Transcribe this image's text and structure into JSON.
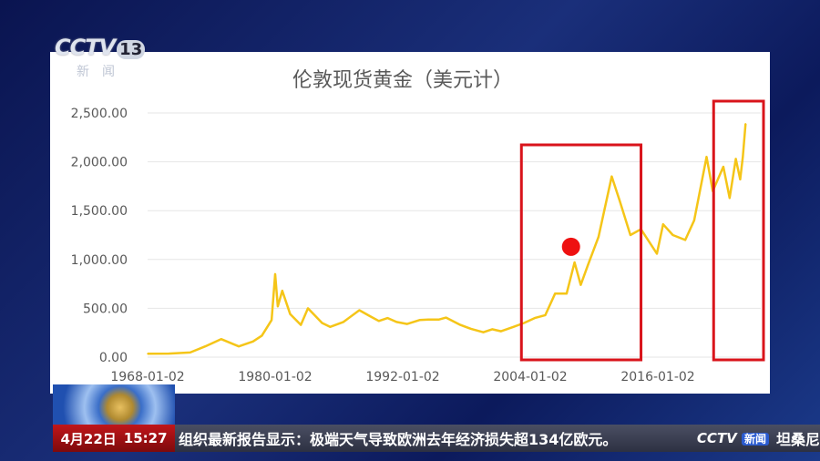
{
  "logo": {
    "brand": "CCTV",
    "channel": "13",
    "sub": "新闻"
  },
  "ticker": {
    "date": "4月22日",
    "time": "15:27",
    "headline": "组织最新报告显示：极端天气导致欧洲去年经济损失超134亿欧元。",
    "logo_brand": "CCTV",
    "logo_tag": "新闻",
    "next": "坦桑尼"
  },
  "colors": {
    "line": "#f5c518",
    "highlight": "#d9141b",
    "grid": "#e6e6e6",
    "axis_text": "#595959"
  },
  "chart_data": {
    "type": "line",
    "title": "伦敦现货黄金（美元计）",
    "xlabel": "",
    "ylabel": "",
    "xlim": [
      "1968-01-02",
      "2024-06-30"
    ],
    "ylim": [
      0,
      2500
    ],
    "yticks": [
      "0.00",
      "500.00",
      "1,000.00",
      "1,500.00",
      "2,000.00",
      "2,500.00"
    ],
    "xticks": [
      "1968-01-02",
      "1980-01-02",
      "1992-01-02",
      "2004-01-02",
      "2016-01-02"
    ],
    "grid": "horizontal",
    "series": [
      {
        "x": [
          "1968-01",
          "1970-01",
          "1972-01",
          "1973-06",
          "1974-12",
          "1976-08",
          "1977-12",
          "1978-10",
          "1979-09",
          "1980-01",
          "1980-04",
          "1980-09",
          "1981-06",
          "1982-06",
          "1983-02",
          "1984-06",
          "1985-03",
          "1986-06",
          "1987-12",
          "1988-12",
          "1989-10",
          "1990-08",
          "1991-06",
          "1992-06",
          "1993-08",
          "1994-06",
          "1995-06",
          "1996-02",
          "1997-06",
          "1998-06",
          "1999-08",
          "2000-06",
          "2001-04",
          "2002-06",
          "2003-06",
          "2004-06",
          "2005-06",
          "2006-05",
          "2007-06",
          "2008-03",
          "2008-10",
          "2009-06",
          "2010-06",
          "2011-09",
          "2012-06",
          "2013-06",
          "2014-06",
          "2015-12",
          "2016-07",
          "2017-06",
          "2018-08",
          "2019-06",
          "2020-08",
          "2021-03",
          "2022-03",
          "2022-10",
          "2023-05",
          "2023-10",
          "2024-01",
          "2024-04"
        ],
        "values": [
          35,
          36,
          48,
          110,
          185,
          110,
          160,
          220,
          380,
          850,
          520,
          680,
          440,
          330,
          500,
          350,
          310,
          360,
          480,
          420,
          370,
          400,
          360,
          340,
          380,
          385,
          385,
          405,
          330,
          290,
          255,
          285,
          265,
          310,
          350,
          400,
          430,
          650,
          650,
          970,
          740,
          940,
          1230,
          1850,
          1600,
          1250,
          1310,
          1060,
          1360,
          1250,
          1200,
          1400,
          2050,
          1700,
          1950,
          1630,
          2030,
          1820,
          2050,
          2390
        ]
      }
    ],
    "annotations": [
      {
        "type": "rectangle",
        "from": "2003-03",
        "to": "2014-06",
        "color": "#d9141b"
      },
      {
        "type": "rectangle",
        "from": "2021-04",
        "to": "2026-01",
        "color": "#d9141b"
      },
      {
        "type": "point",
        "x": "2007-11",
        "y": 1130,
        "color": "#ee1111"
      }
    ]
  }
}
